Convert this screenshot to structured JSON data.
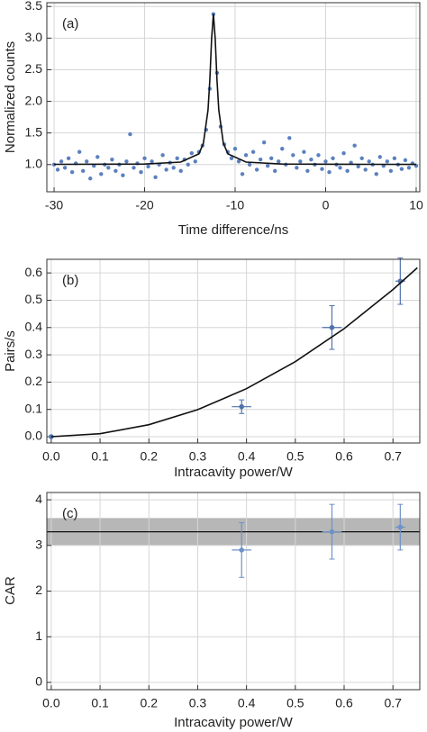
{
  "chart_data": [
    {
      "type": "scatter",
      "label": "(a)",
      "xlabel": "Time difference/ns",
      "ylabel": "Normalized counts",
      "xlim": [
        -30.8,
        10.4
      ],
      "ylim": [
        0.57,
        3.56
      ],
      "xticks": [
        -30,
        -20,
        -10,
        0,
        10
      ],
      "yticks": [
        {
          "value": 1.0,
          "label": "1.0"
        },
        {
          "value": 1.5,
          "label": "1.5"
        },
        {
          "value": 2.0,
          "label": "2.0"
        },
        {
          "value": 2.5,
          "label": "2.5"
        },
        {
          "value": 3.0,
          "label": "3.0"
        },
        {
          "value": 3.5,
          "label": "3.5"
        }
      ],
      "grid": true,
      "series": [
        {
          "style": "markers",
          "color": "#5b80bf",
          "x": [
            -30,
            -29.6,
            -29.2,
            -28.8,
            -28.4,
            -28,
            -27.6,
            -27.2,
            -26.8,
            -26.4,
            -26,
            -25.6,
            -25.2,
            -24.8,
            -24.4,
            -24,
            -23.6,
            -23.2,
            -22.8,
            -22.4,
            -22,
            -21.6,
            -21.2,
            -20.8,
            -20.4,
            -20,
            -19.6,
            -19.2,
            -18.8,
            -18.4,
            -18,
            -17.6,
            -17.2,
            -16.8,
            -16.4,
            -16,
            -15.6,
            -15.2,
            -14.8,
            -14.4,
            -14,
            -13.6,
            -13.2,
            -12.8,
            -12.4,
            -12,
            -11.6,
            -11.2,
            -10.8,
            -10.4,
            -10,
            -9.6,
            -9.2,
            -8.8,
            -8.4,
            -8,
            -7.6,
            -7.2,
            -6.8,
            -6.4,
            -6,
            -5.6,
            -5.2,
            -4.8,
            -4.4,
            -4,
            -3.6,
            -3.2,
            -2.8,
            -2.4,
            -2,
            -1.6,
            -1.2,
            -0.8,
            -0.4,
            0,
            0.4,
            0.8,
            1.2,
            1.6,
            2,
            2.4,
            2.8,
            3.2,
            3.6,
            4,
            4.4,
            4.8,
            5.2,
            5.6,
            6,
            6.4,
            6.8,
            7.2,
            7.6,
            8,
            8.4,
            8.8,
            9.2,
            9.6,
            10
          ],
          "values": [
            1.0,
            0.92,
            1.05,
            0.95,
            1.1,
            0.88,
            1.02,
            1.2,
            0.9,
            1.05,
            0.78,
            0.98,
            1.12,
            0.85,
            1.0,
            0.95,
            1.08,
            0.9,
            1.0,
            0.83,
            1.05,
            1.48,
            0.95,
            1.02,
            0.88,
            1.1,
            0.97,
            1.05,
            0.8,
            1.0,
            1.15,
            0.92,
            1.03,
            0.95,
            1.1,
            0.9,
            1.08,
            1.0,
            1.18,
            1.05,
            1.2,
            1.3,
            1.55,
            2.2,
            3.38,
            2.45,
            1.6,
            1.32,
            1.2,
            1.1,
            1.25,
            1.05,
            0.85,
            1.15,
            1.0,
            1.2,
            0.92,
            1.08,
            1.35,
            0.98,
            1.1,
            0.9,
            1.05,
            1.25,
            1.0,
            1.42,
            1.15,
            0.95,
            1.05,
            1.2,
            0.9,
            1.08,
            1.0,
            1.15,
            0.93,
            1.05,
            0.88,
            1.1,
            1.0,
            0.95,
            1.18,
            0.9,
            1.03,
            1.3,
            0.97,
            1.1,
            0.92,
            1.05,
            1.0,
            0.85,
            1.12,
            0.98,
            1.05,
            0.9,
            1.1,
            1.0,
            0.93,
            1.07,
            0.95,
            1.02,
            0.98
          ]
        },
        {
          "style": "line",
          "color": "#111111",
          "x": [
            -30,
            -20,
            -16,
            -14,
            -13.5,
            -13,
            -12.8,
            -12.6,
            -12.4,
            -12.2,
            -12,
            -11.8,
            -11.3,
            -10.8,
            -8.8,
            -4.8,
            5.2,
            10
          ],
          "values": [
            1.004,
            1.008,
            1.04,
            1.17,
            1.34,
            1.86,
            2.33,
            2.99,
            3.38,
            2.99,
            2.33,
            1.86,
            1.34,
            1.17,
            1.04,
            1.008,
            1.004,
            1.003
          ]
        }
      ]
    },
    {
      "type": "scatter",
      "label": "(b)",
      "xlabel": "Intracavity power/W",
      "ylabel": "Pairs/s",
      "xlim": [
        -0.009,
        0.755
      ],
      "ylim": [
        -0.023,
        0.65
      ],
      "xticks": [
        {
          "value": 0,
          "label": "0.0"
        },
        0.1,
        0.2,
        0.3,
        0.4,
        0.5,
        0.6,
        0.7
      ],
      "yticks": [
        {
          "value": 0,
          "label": "0.0"
        },
        0.1,
        0.2,
        0.3,
        0.4,
        0.5,
        0.6
      ],
      "grid": true,
      "series": [
        {
          "style": "markers",
          "color": "#4f72ad",
          "x": [
            0.0,
            0.39,
            0.575,
            0.715
          ],
          "values": [
            0.0,
            0.11,
            0.4,
            0.57
          ],
          "y_errors": [
            0.0,
            0.025,
            0.08,
            0.085
          ],
          "x_errors": [
            0.0,
            0.02,
            0.02,
            0.01
          ]
        },
        {
          "style": "line",
          "color": "#111111",
          "x": [
            0,
            0.1,
            0.2,
            0.3,
            0.4,
            0.5,
            0.6,
            0.7,
            0.75
          ],
          "values": [
            0,
            0.011,
            0.044,
            0.099,
            0.176,
            0.275,
            0.396,
            0.539,
            0.619
          ]
        }
      ]
    },
    {
      "type": "scatter",
      "label": "(c)",
      "xlabel": "Intracavity power/W",
      "ylabel": "CAR",
      "xlim": [
        -0.009,
        0.755
      ],
      "ylim": [
        -0.16,
        4.16
      ],
      "xticks": [
        {
          "value": 0,
          "label": "0.0"
        },
        0.1,
        0.2,
        0.3,
        0.4,
        0.5,
        0.6,
        0.7
      ],
      "yticks": [
        0,
        1,
        2,
        3,
        4
      ],
      "grid": true,
      "band": [
        3.0,
        3.6
      ],
      "line_value": 3.3,
      "series": [
        {
          "style": "markers",
          "color": "#6e92c8",
          "x": [
            0.39,
            0.575,
            0.715
          ],
          "values": [
            2.9,
            3.3,
            3.4
          ],
          "y_errors": [
            0.6,
            0.6,
            0.5
          ],
          "x_errors": [
            0.02,
            0.02,
            0.01
          ]
        }
      ]
    }
  ]
}
